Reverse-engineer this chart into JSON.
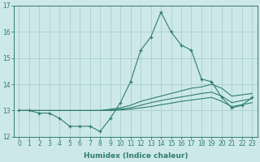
{
  "x": [
    0,
    1,
    2,
    3,
    4,
    5,
    6,
    7,
    8,
    9,
    10,
    11,
    12,
    13,
    14,
    15,
    16,
    17,
    18,
    19,
    20,
    21,
    22,
    23
  ],
  "line1": [
    13.0,
    13.0,
    12.9,
    12.9,
    12.7,
    12.4,
    12.4,
    12.4,
    12.2,
    12.7,
    13.3,
    14.1,
    15.3,
    15.8,
    16.75,
    16.0,
    15.5,
    15.3,
    14.2,
    14.1,
    13.5,
    13.1,
    13.2,
    13.5
  ],
  "line2": [
    13.0,
    13.0,
    13.0,
    13.0,
    13.0,
    13.0,
    13.0,
    13.0,
    13.0,
    13.05,
    13.1,
    13.2,
    13.35,
    13.45,
    13.55,
    13.65,
    13.75,
    13.85,
    13.9,
    14.0,
    13.85,
    13.55,
    13.6,
    13.65
  ],
  "line3": [
    13.0,
    13.0,
    13.0,
    13.0,
    13.0,
    13.0,
    13.0,
    13.0,
    13.0,
    13.02,
    13.05,
    13.1,
    13.2,
    13.3,
    13.38,
    13.45,
    13.52,
    13.58,
    13.65,
    13.7,
    13.55,
    13.3,
    13.38,
    13.45
  ],
  "line4": [
    13.0,
    13.0,
    13.0,
    13.0,
    13.0,
    13.0,
    13.0,
    13.0,
    13.0,
    13.0,
    13.02,
    13.05,
    13.1,
    13.15,
    13.22,
    13.28,
    13.35,
    13.4,
    13.45,
    13.5,
    13.35,
    13.15,
    13.22,
    13.3
  ],
  "line_color": "#2e7d72",
  "bg_color": "#cde8e8",
  "grid_color": "#aacece",
  "xlabel": "Humidex (Indice chaleur)",
  "ylim": [
    12,
    17
  ],
  "xlim_min": -0.5,
  "xlim_max": 23.5,
  "yticks": [
    12,
    13,
    14,
    15,
    16,
    17
  ],
  "xticks": [
    0,
    1,
    2,
    3,
    4,
    5,
    6,
    7,
    8,
    9,
    10,
    11,
    12,
    13,
    14,
    15,
    16,
    17,
    18,
    19,
    20,
    21,
    22,
    23
  ],
  "tick_fontsize": 5.5,
  "xlabel_fontsize": 6.5
}
